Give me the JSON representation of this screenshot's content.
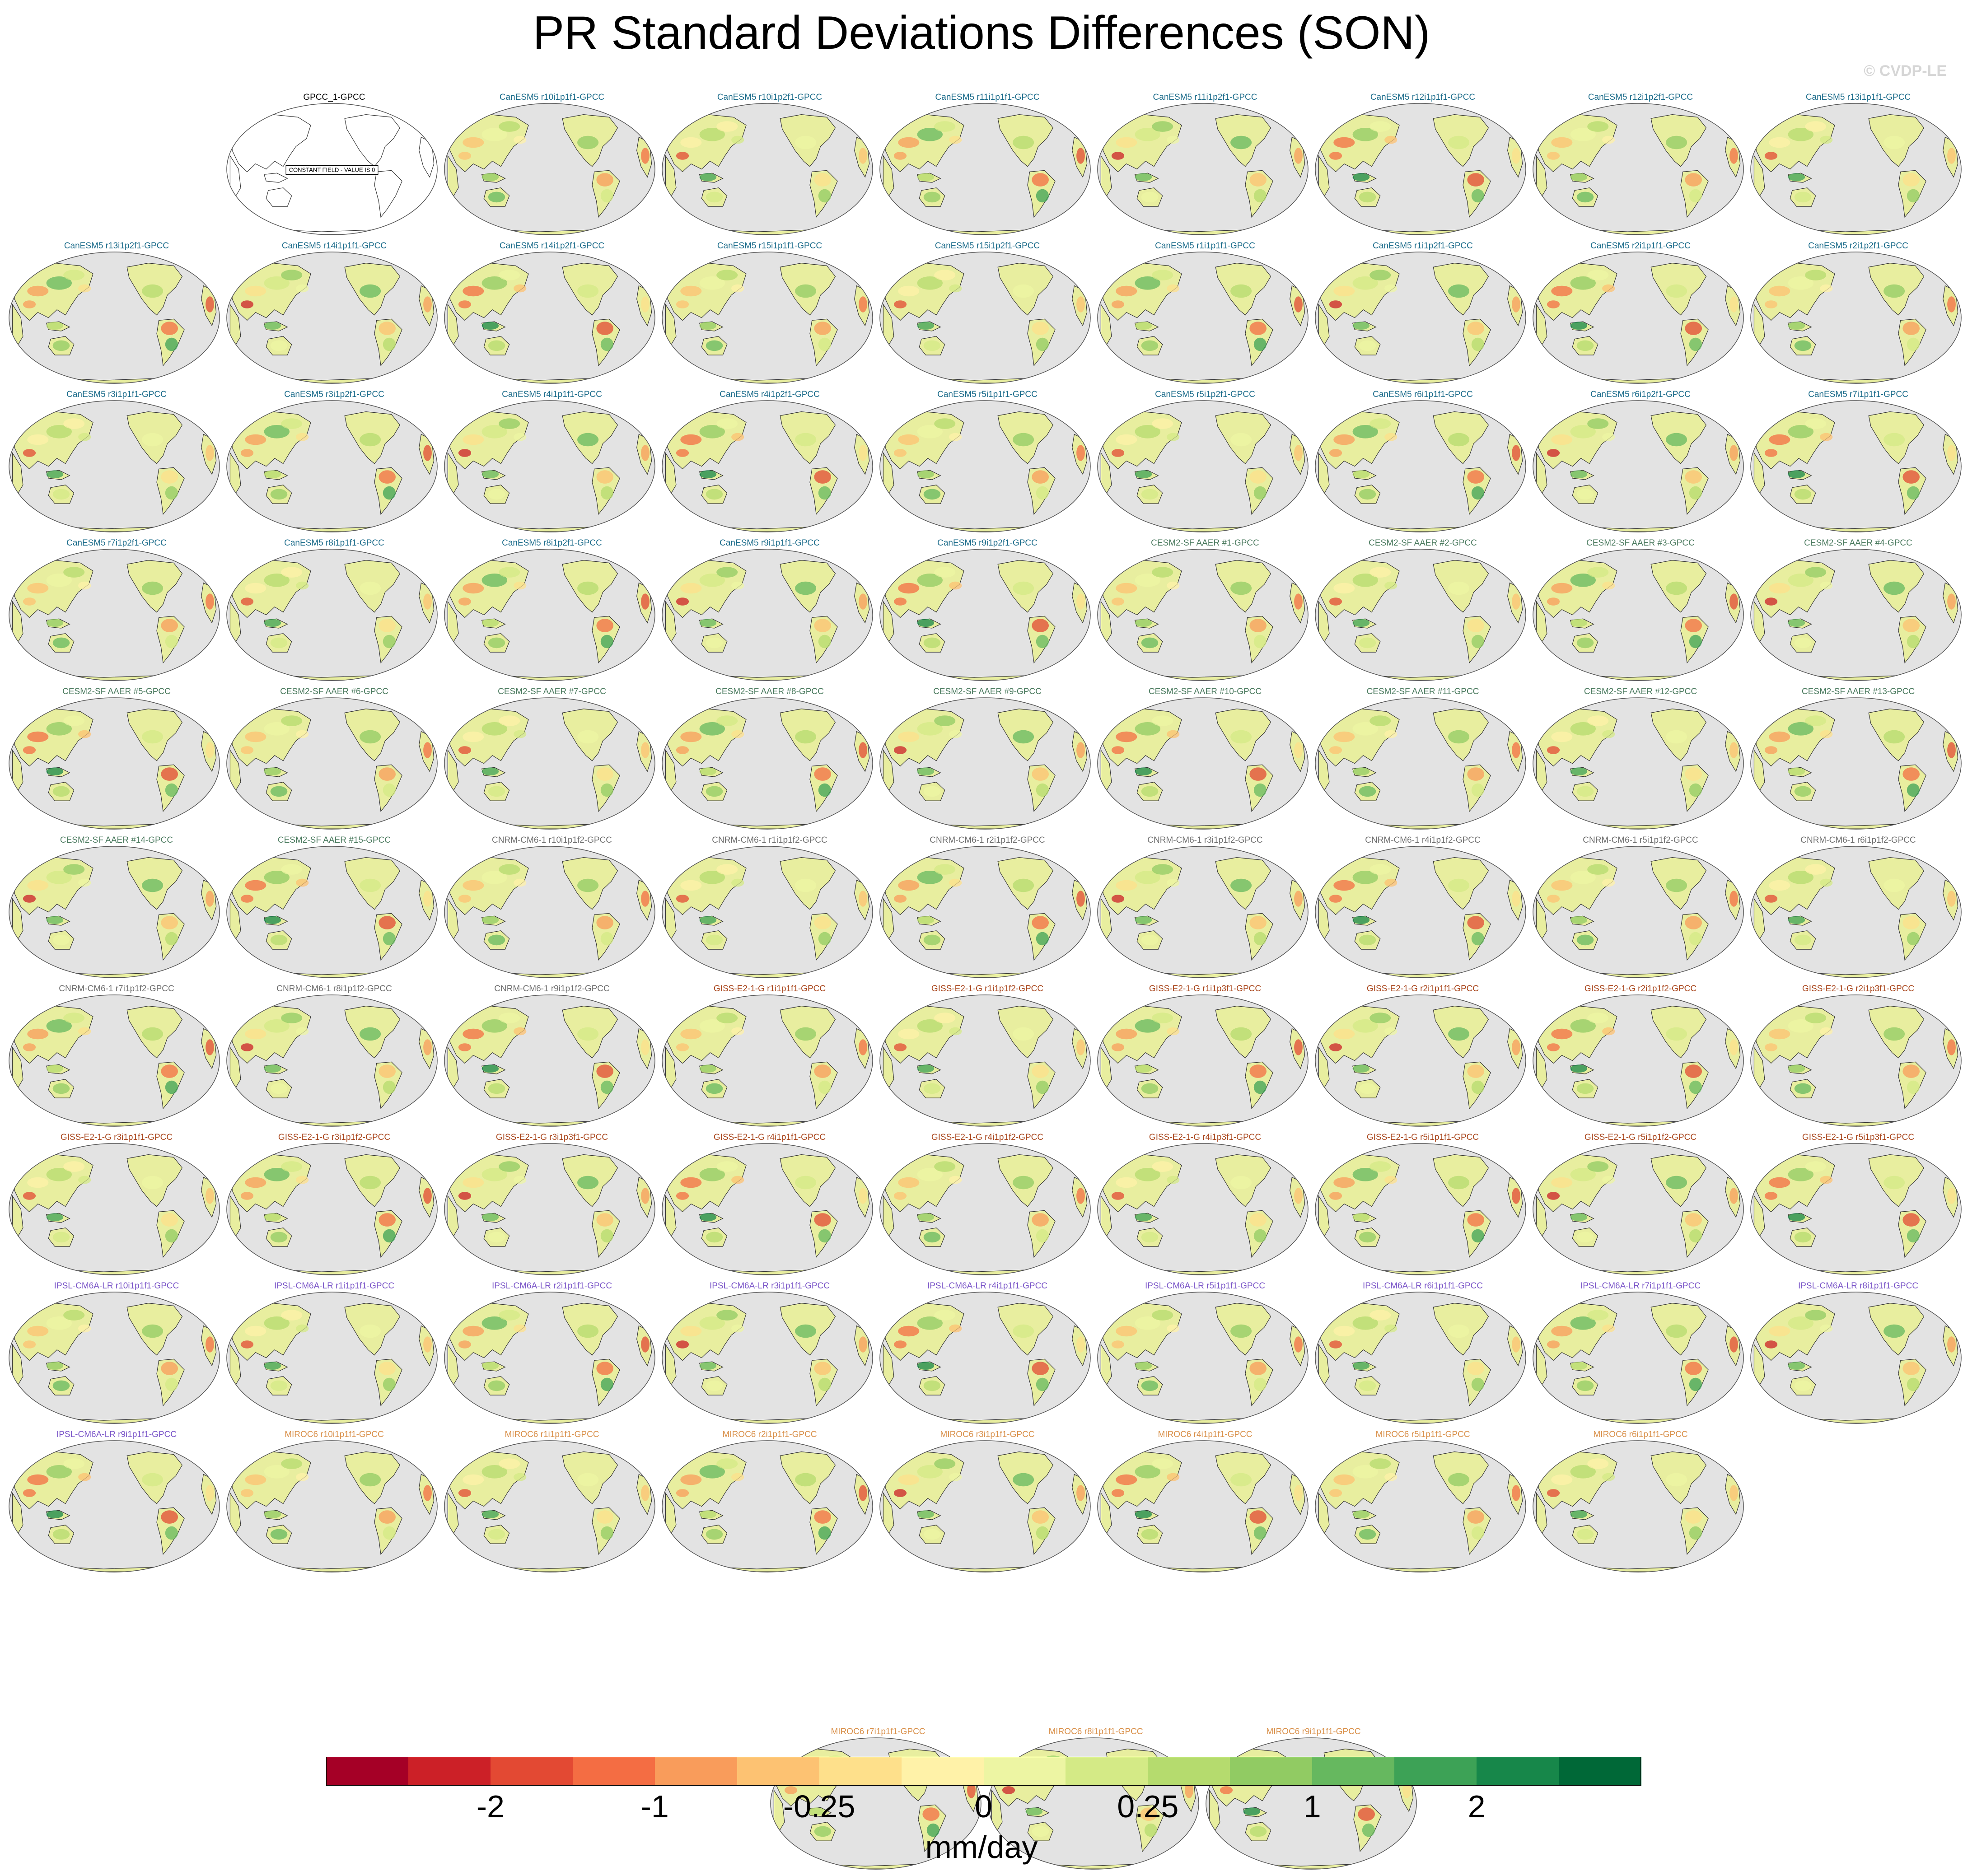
{
  "title": "PR Standard Deviations Differences (SON)",
  "watermark": "© CVDP-LE",
  "panels": [
    {
      "label": "GPCC_1-GPCC",
      "group": "obs",
      "note": "CONSTANT FIELD - VALUE IS 0"
    },
    {
      "label": "CanESM5 r10i1p1f1-GPCC",
      "group": "canesm5"
    },
    {
      "label": "CanESM5 r10i1p2f1-GPCC",
      "group": "canesm5"
    },
    {
      "label": "CanESM5 r11i1p1f1-GPCC",
      "group": "canesm5"
    },
    {
      "label": "CanESM5 r11i1p2f1-GPCC",
      "group": "canesm5"
    },
    {
      "label": "CanESM5 r12i1p1f1-GPCC",
      "group": "canesm5"
    },
    {
      "label": "CanESM5 r12i1p2f1-GPCC",
      "group": "canesm5"
    },
    {
      "label": "CanESM5 r13i1p1f1-GPCC",
      "group": "canesm5"
    },
    {
      "label": "CanESM5 r13i1p2f1-GPCC",
      "group": "canesm5"
    },
    {
      "label": "CanESM5 r14i1p1f1-GPCC",
      "group": "canesm5"
    },
    {
      "label": "CanESM5 r14i1p2f1-GPCC",
      "group": "canesm5"
    },
    {
      "label": "CanESM5 r15i1p1f1-GPCC",
      "group": "canesm5"
    },
    {
      "label": "CanESM5 r15i1p2f1-GPCC",
      "group": "canesm5"
    },
    {
      "label": "CanESM5 r1i1p1f1-GPCC",
      "group": "canesm5"
    },
    {
      "label": "CanESM5 r1i1p2f1-GPCC",
      "group": "canesm5"
    },
    {
      "label": "CanESM5 r2i1p1f1-GPCC",
      "group": "canesm5"
    },
    {
      "label": "CanESM5 r2i1p2f1-GPCC",
      "group": "canesm5"
    },
    {
      "label": "CanESM5 r3i1p1f1-GPCC",
      "group": "canesm5"
    },
    {
      "label": "CanESM5 r3i1p2f1-GPCC",
      "group": "canesm5"
    },
    {
      "label": "CanESM5 r4i1p1f1-GPCC",
      "group": "canesm5"
    },
    {
      "label": "CanESM5 r4i1p2f1-GPCC",
      "group": "canesm5"
    },
    {
      "label": "CanESM5 r5i1p1f1-GPCC",
      "group": "canesm5"
    },
    {
      "label": "CanESM5 r5i1p2f1-GPCC",
      "group": "canesm5"
    },
    {
      "label": "CanESM5 r6i1p1f1-GPCC",
      "group": "canesm5"
    },
    {
      "label": "CanESM5 r6i1p2f1-GPCC",
      "group": "canesm5"
    },
    {
      "label": "CanESM5 r7i1p1f1-GPCC",
      "group": "canesm5"
    },
    {
      "label": "CanESM5 r7i1p2f1-GPCC",
      "group": "canesm5"
    },
    {
      "label": "CanESM5 r8i1p1f1-GPCC",
      "group": "canesm5"
    },
    {
      "label": "CanESM5 r8i1p2f1-GPCC",
      "group": "canesm5"
    },
    {
      "label": "CanESM5 r9i1p1f1-GPCC",
      "group": "canesm5"
    },
    {
      "label": "CanESM5 r9i1p2f1-GPCC",
      "group": "canesm5"
    },
    {
      "label": "CESM2-SF AAER #1-GPCC",
      "group": "cesm2"
    },
    {
      "label": "CESM2-SF AAER #2-GPCC",
      "group": "cesm2"
    },
    {
      "label": "CESM2-SF AAER #3-GPCC",
      "group": "cesm2"
    },
    {
      "label": "CESM2-SF AAER #4-GPCC",
      "group": "cesm2"
    },
    {
      "label": "CESM2-SF AAER #5-GPCC",
      "group": "cesm2"
    },
    {
      "label": "CESM2-SF AAER #6-GPCC",
      "group": "cesm2"
    },
    {
      "label": "CESM2-SF AAER #7-GPCC",
      "group": "cesm2"
    },
    {
      "label": "CESM2-SF AAER #8-GPCC",
      "group": "cesm2"
    },
    {
      "label": "CESM2-SF AAER #9-GPCC",
      "group": "cesm2"
    },
    {
      "label": "CESM2-SF AAER #10-GPCC",
      "group": "cesm2"
    },
    {
      "label": "CESM2-SF AAER #11-GPCC",
      "group": "cesm2"
    },
    {
      "label": "CESM2-SF AAER #12-GPCC",
      "group": "cesm2"
    },
    {
      "label": "CESM2-SF AAER #13-GPCC",
      "group": "cesm2"
    },
    {
      "label": "CESM2-SF AAER #14-GPCC",
      "group": "cesm2"
    },
    {
      "label": "CESM2-SF AAER #15-GPCC",
      "group": "cesm2"
    },
    {
      "label": "CNRM-CM6-1 r10i1p1f2-GPCC",
      "group": "cnrm"
    },
    {
      "label": "CNRM-CM6-1 r1i1p1f2-GPCC",
      "group": "cnrm"
    },
    {
      "label": "CNRM-CM6-1 r2i1p1f2-GPCC",
      "group": "cnrm"
    },
    {
      "label": "CNRM-CM6-1 r3i1p1f2-GPCC",
      "group": "cnrm"
    },
    {
      "label": "CNRM-CM6-1 r4i1p1f2-GPCC",
      "group": "cnrm"
    },
    {
      "label": "CNRM-CM6-1 r5i1p1f2-GPCC",
      "group": "cnrm"
    },
    {
      "label": "CNRM-CM6-1 r6i1p1f2-GPCC",
      "group": "cnrm"
    },
    {
      "label": "CNRM-CM6-1 r7i1p1f2-GPCC",
      "group": "cnrm"
    },
    {
      "label": "CNRM-CM6-1 r8i1p1f2-GPCC",
      "group": "cnrm"
    },
    {
      "label": "CNRM-CM6-1 r9i1p1f2-GPCC",
      "group": "cnrm"
    },
    {
      "label": "GISS-E2-1-G r1i1p1f1-GPCC",
      "group": "giss"
    },
    {
      "label": "GISS-E2-1-G r1i1p1f2-GPCC",
      "group": "giss"
    },
    {
      "label": "GISS-E2-1-G r1i1p3f1-GPCC",
      "group": "giss"
    },
    {
      "label": "GISS-E2-1-G r2i1p1f1-GPCC",
      "group": "giss"
    },
    {
      "label": "GISS-E2-1-G r2i1p1f2-GPCC",
      "group": "giss"
    },
    {
      "label": "GISS-E2-1-G r2i1p3f1-GPCC",
      "group": "giss"
    },
    {
      "label": "GISS-E2-1-G r3i1p1f1-GPCC",
      "group": "giss"
    },
    {
      "label": "GISS-E2-1-G r3i1p1f2-GPCC",
      "group": "giss"
    },
    {
      "label": "GISS-E2-1-G r3i1p3f1-GPCC",
      "group": "giss"
    },
    {
      "label": "GISS-E2-1-G r4i1p1f1-GPCC",
      "group": "giss"
    },
    {
      "label": "GISS-E2-1-G r4i1p1f2-GPCC",
      "group": "giss"
    },
    {
      "label": "GISS-E2-1-G r4i1p3f1-GPCC",
      "group": "giss"
    },
    {
      "label": "GISS-E2-1-G r5i1p1f1-GPCC",
      "group": "giss"
    },
    {
      "label": "GISS-E2-1-G r5i1p1f2-GPCC",
      "group": "giss"
    },
    {
      "label": "GISS-E2-1-G r5i1p3f1-GPCC",
      "group": "giss"
    },
    {
      "label": "IPSL-CM6A-LR r10i1p1f1-GPCC",
      "group": "ipsl"
    },
    {
      "label": "IPSL-CM6A-LR r1i1p1f1-GPCC",
      "group": "ipsl"
    },
    {
      "label": "IPSL-CM6A-LR r2i1p1f1-GPCC",
      "group": "ipsl"
    },
    {
      "label": "IPSL-CM6A-LR r3i1p1f1-GPCC",
      "group": "ipsl"
    },
    {
      "label": "IPSL-CM6A-LR r4i1p1f1-GPCC",
      "group": "ipsl"
    },
    {
      "label": "IPSL-CM6A-LR r5i1p1f1-GPCC",
      "group": "ipsl"
    },
    {
      "label": "IPSL-CM6A-LR r6i1p1f1-GPCC",
      "group": "ipsl"
    },
    {
      "label": "IPSL-CM6A-LR r7i1p1f1-GPCC",
      "group": "ipsl"
    },
    {
      "label": "IPSL-CM6A-LR r8i1p1f1-GPCC",
      "group": "ipsl"
    },
    {
      "label": "IPSL-CM6A-LR r9i1p1f1-GPCC",
      "group": "ipsl"
    },
    {
      "label": "MIROC6 r10i1p1f1-GPCC",
      "group": "miroc6"
    },
    {
      "label": "MIROC6 r1i1p1f1-GPCC",
      "group": "miroc6"
    },
    {
      "label": "MIROC6 r2i1p1f1-GPCC",
      "group": "miroc6"
    },
    {
      "label": "MIROC6 r3i1p1f1-GPCC",
      "group": "miroc6"
    },
    {
      "label": "MIROC6 r4i1p1f1-GPCC",
      "group": "miroc6"
    },
    {
      "label": "MIROC6 r5i1p1f1-GPCC",
      "group": "miroc6"
    },
    {
      "label": "MIROC6 r6i1p1f1-GPCC",
      "group": "miroc6"
    },
    {
      "label": "MIROC6 r7i1p1f1-GPCC",
      "group": "miroc6"
    },
    {
      "label": "MIROC6 r8i1p1f1-GPCC",
      "group": "miroc6"
    },
    {
      "label": "MIROC6 r9i1p1f1-GPCC",
      "group": "miroc6"
    }
  ],
  "group_colors": {
    "obs": "#000000",
    "canesm5": "#1a6b8a",
    "cesm2": "#4a7a5e",
    "cnrm": "#6e6e6e",
    "giss": "#a8441a",
    "ipsl": "#7a55c8",
    "miroc6": "#d9904a"
  },
  "map_colors": {
    "ocean": "#e3e3e3",
    "land_base": "#e8ee9f",
    "coast": "#333333"
  },
  "colorbar": {
    "colors": [
      "#a50026",
      "#cc2027",
      "#e34933",
      "#f46d43",
      "#f99c5b",
      "#fdc272",
      "#fee08b",
      "#fff2a8",
      "#edf5a3",
      "#d4ea86",
      "#b5db6e",
      "#91cb63",
      "#66b85f",
      "#3da256",
      "#17874a",
      "#006837"
    ],
    "labels": [
      "-2",
      "-1",
      "-0.25",
      "0",
      "0.25",
      "1",
      "2"
    ],
    "label_boundaries": [
      2,
      4,
      6,
      8,
      10,
      12,
      14
    ],
    "units": "mm/day"
  }
}
